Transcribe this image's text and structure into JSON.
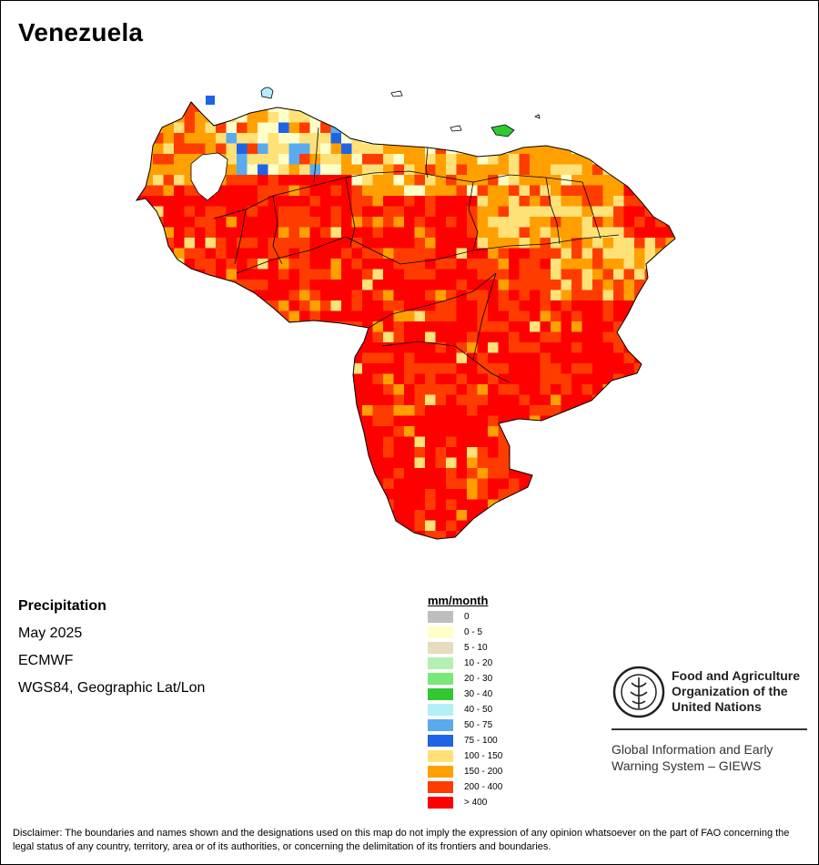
{
  "title": "Venezuela",
  "info": {
    "variable": "Precipitation",
    "period": "May 2025",
    "source": "ECMWF",
    "projection": "WGS84, Geographic Lat/Lon"
  },
  "legend": {
    "title": "mm/month",
    "items": [
      {
        "label": "0",
        "color": "#bebebe"
      },
      {
        "label": "0 - 5",
        "color": "#ffffc8"
      },
      {
        "label": "5 - 10",
        "color": "#e8dcbe"
      },
      {
        "label": "10 - 20",
        "color": "#b4f0b4"
      },
      {
        "label": "20 - 30",
        "color": "#78e878"
      },
      {
        "label": "30 - 40",
        "color": "#32c832"
      },
      {
        "label": "40 - 50",
        "color": "#b4eef8"
      },
      {
        "label": "50 - 75",
        "color": "#5aaaf0"
      },
      {
        "label": "75 - 100",
        "color": "#1e64e6"
      },
      {
        "label": "100 - 150",
        "color": "#ffe178"
      },
      {
        "label": "150 - 200",
        "color": "#ffa000"
      },
      {
        "label": "200 - 400",
        "color": "#ff3c00"
      },
      {
        "label": "> 400",
        "color": "#ff0000"
      }
    ]
  },
  "branding": {
    "org_line1": "Food and Agriculture",
    "org_line2": "Organization of the",
    "org_line3": "United Nations",
    "system_line1": "Global Information and Early",
    "system_line2": "Warning System – GIEWS"
  },
  "disclaimer": "Disclaimer: The boundaries and names shown and the designations used on this map do not imply the expression of any opinion whatsoever on the part of FAO concerning the legal status of any country, territory, area or of its authorities, or concerning the delimitation of its frontiers and boundaries."
}
